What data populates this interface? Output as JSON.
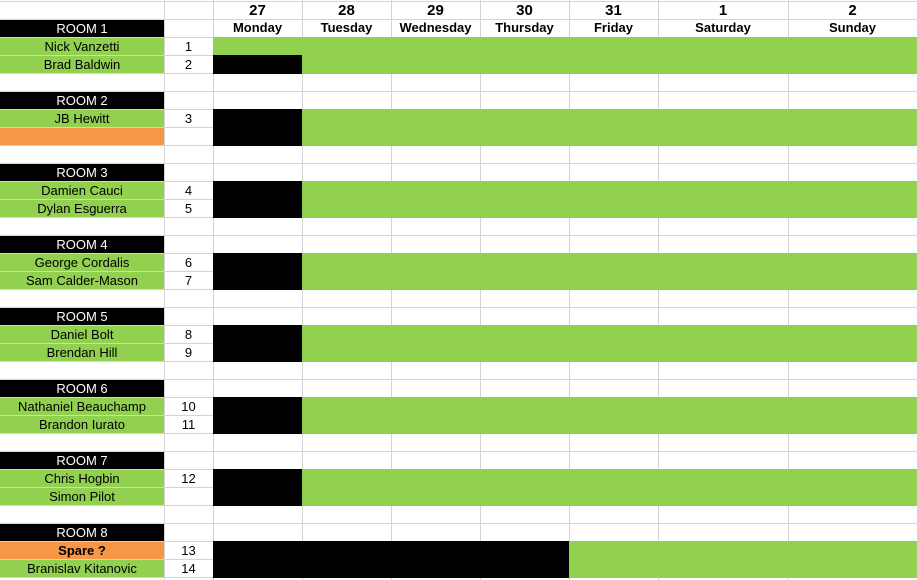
{
  "colors": {
    "occupied": "#92d050",
    "spare": "#f79646",
    "blocked": "#000000",
    "room_header": "#000000"
  },
  "days": [
    {
      "date": "27",
      "day": "Monday"
    },
    {
      "date": "28",
      "day": "Tuesday"
    },
    {
      "date": "29",
      "day": "Wednesday"
    },
    {
      "date": "30",
      "day": "Thursday"
    },
    {
      "date": "31",
      "day": "Friday"
    },
    {
      "date": "1",
      "day": "Saturday"
    },
    {
      "date": "2",
      "day": "Sunday"
    }
  ],
  "rooms": [
    {
      "label": "ROOM 1",
      "guests": [
        {
          "name": "Nick Vanzetti",
          "num": "1",
          "style": "green",
          "blocked_until_day": 0
        },
        {
          "name": "Brad Baldwin",
          "num": "2",
          "style": "green",
          "blocked_until_day": 1
        }
      ]
    },
    {
      "label": "ROOM 2",
      "guests": [
        {
          "name": "JB Hewitt",
          "num": "3",
          "style": "green",
          "blocked_until_day": 1
        },
        {
          "name": "",
          "num": "",
          "style": "orange",
          "blocked_until_day": 1
        }
      ]
    },
    {
      "label": "ROOM 3",
      "guests": [
        {
          "name": "Damien Cauci",
          "num": "4",
          "style": "green",
          "blocked_until_day": 1
        },
        {
          "name": "Dylan Esguerra",
          "num": "5",
          "style": "green",
          "blocked_until_day": 1
        }
      ]
    },
    {
      "label": "ROOM 4",
      "guests": [
        {
          "name": "George Cordalis",
          "num": "6",
          "style": "green",
          "blocked_until_day": 1
        },
        {
          "name": "Sam Calder-Mason",
          "num": "7",
          "style": "green",
          "blocked_until_day": 1
        }
      ]
    },
    {
      "label": "ROOM 5",
      "guests": [
        {
          "name": "Daniel Bolt",
          "num": "8",
          "style": "green",
          "blocked_until_day": 1
        },
        {
          "name": "Brendan Hill",
          "num": "9",
          "style": "green",
          "blocked_until_day": 1
        }
      ]
    },
    {
      "label": "ROOM 6",
      "guests": [
        {
          "name": "Nathaniel Beauchamp",
          "num": "10",
          "style": "green",
          "blocked_until_day": 1
        },
        {
          "name": "Brandon Iurato",
          "num": "11",
          "style": "green",
          "blocked_until_day": 1
        }
      ]
    },
    {
      "label": "ROOM 7",
      "guests": [
        {
          "name": "Chris Hogbin",
          "num": "12",
          "style": "green",
          "blocked_until_day": 1
        },
        {
          "name": "Simon Pilot",
          "num": "",
          "style": "green",
          "blocked_until_day": 1
        }
      ]
    },
    {
      "label": "ROOM 8",
      "guests": [
        {
          "name": "Spare ?",
          "num": "13",
          "style": "orange",
          "bold": true,
          "blocked_until_day": 4
        },
        {
          "name": "Branislav Kitanovic",
          "num": "14",
          "style": "green",
          "blocked_until_day": 4
        }
      ]
    }
  ]
}
